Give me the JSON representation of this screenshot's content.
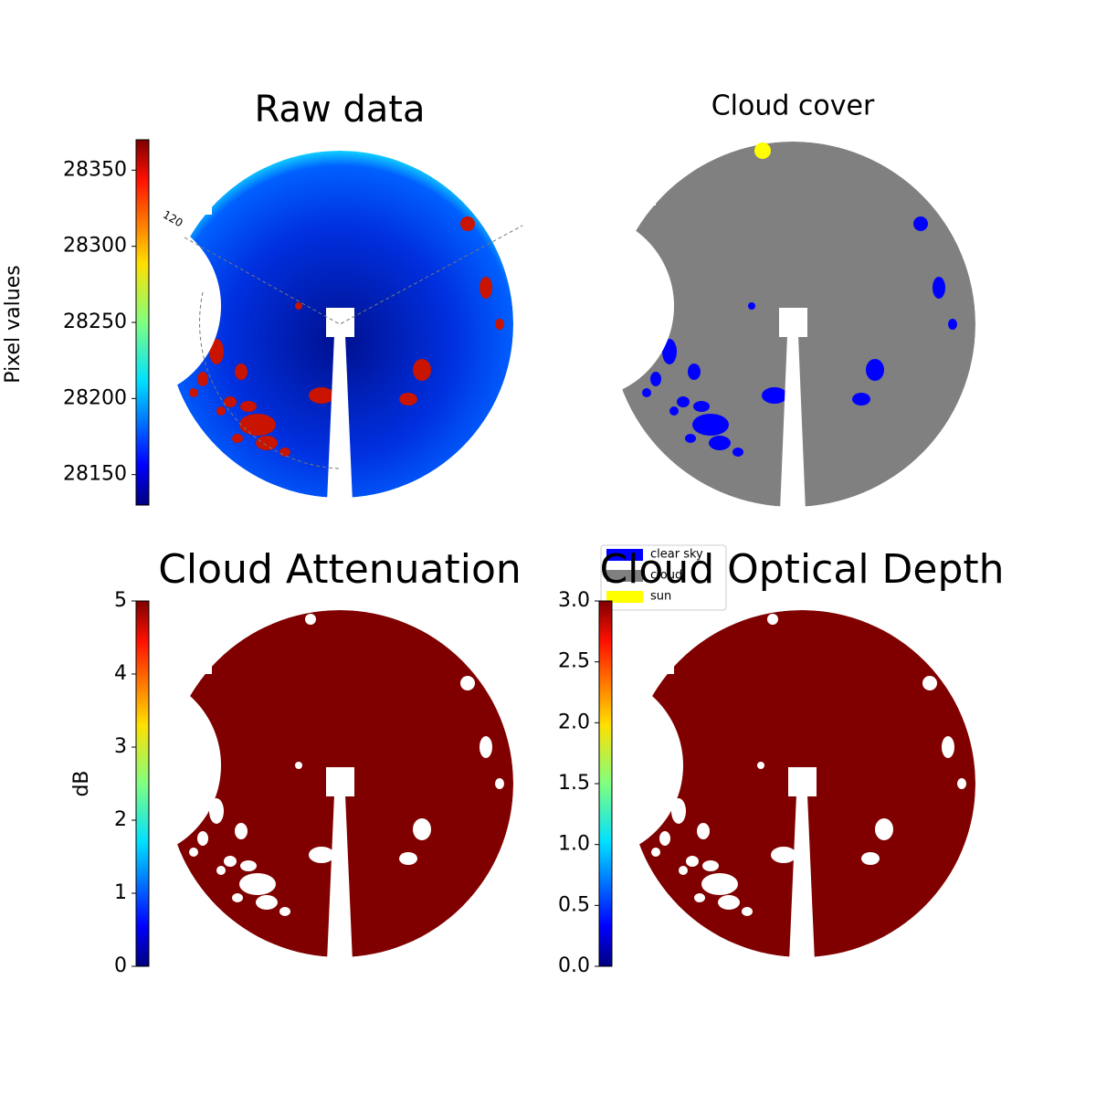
{
  "chart_data": [
    {
      "type": "image",
      "title": "Raw data",
      "colorbar_label": "Pixel values",
      "colormap": "jet",
      "ylim": [
        28130,
        28370
      ],
      "yticks": [
        28150,
        28200,
        28250,
        28300,
        28350
      ],
      "annotation": "120"
    },
    {
      "type": "image",
      "title": "Cloud cover",
      "series": [
        {
          "name": "clear sky",
          "color": "#0000ff"
        },
        {
          "name": "cloud",
          "color": "#808080"
        },
        {
          "name": "sun",
          "color": "#ffff00"
        }
      ]
    },
    {
      "type": "image",
      "title": "Cloud Attenuation",
      "colorbar_label": "dB",
      "colormap": "jet",
      "ylim": [
        0,
        5
      ],
      "yticks": [
        0,
        1,
        2,
        3,
        4,
        5
      ]
    },
    {
      "type": "image",
      "title": "Cloud Optical Depth",
      "colormap": "jet",
      "ylim": [
        0,
        3
      ],
      "yticks": [
        {
          "value": 0,
          "label": "0.0"
        },
        {
          "value": 0.5,
          "label": "0.5"
        },
        {
          "value": 1,
          "label": "1.0"
        },
        {
          "value": 1.5,
          "label": "1.5"
        },
        {
          "value": 2,
          "label": "2.0"
        },
        {
          "value": 2.5,
          "label": "2.5"
        },
        {
          "value": 3,
          "label": "3.0"
        }
      ]
    }
  ]
}
